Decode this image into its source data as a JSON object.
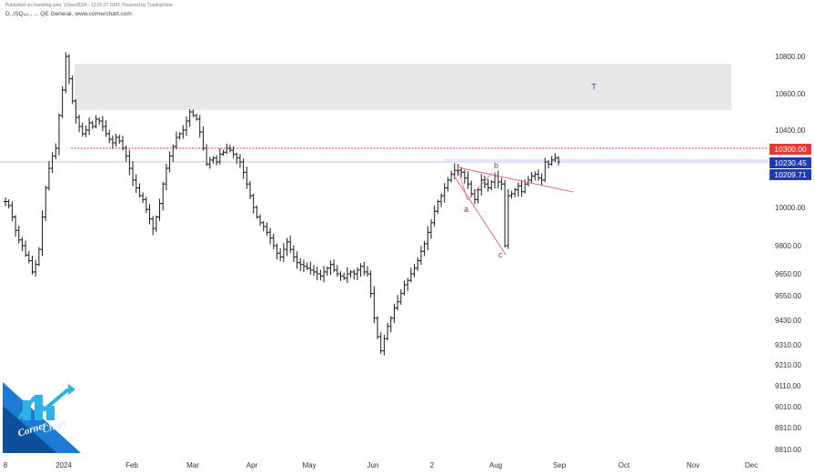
{
  "header": {
    "published": "Published on Investing.com, 1/Sep/2024 - 12:01:27 GMT, Powered by TradingView.",
    "subtitle_instrument": "D.,ISQت., ...",
    "subtitle_index": "QE General,",
    "subtitle_site": "www.cornerchart.com"
  },
  "logo": {
    "text": "Corner Chart"
  },
  "colors": {
    "candle": "#1a1a1a",
    "resistance_line": "#e23b3b",
    "support_line": "#3a3ad6",
    "zone_fill": "#e8e8e8",
    "triangle_line": "#e36b80",
    "annotation": "#8e2aa8",
    "label_red": "#e53935",
    "label_blue": "#1e3bb5"
  },
  "chart_data": {
    "type": "ohlc",
    "x_axis_labels": [
      "8",
      "2024",
      "Feb",
      "Mar",
      "Apr",
      "May",
      "Jun",
      "2",
      "Aug",
      "Sep",
      "Oct",
      "Nov",
      "Dec"
    ],
    "y_axis_labels": [
      "10800.00",
      "10600.00",
      "10400.00",
      "10000.00",
      "9800.00",
      "9650.00",
      "9550.00",
      "9430.00",
      "9310.00",
      "9210.00",
      "9110.00",
      "9010.00",
      "8910.00",
      "8810.00"
    ],
    "price_labels": [
      {
        "text": "10300.00",
        "color": "red"
      },
      {
        "text": "10230.45",
        "color": "blue"
      },
      {
        "text": "10209.71",
        "color": "blue"
      }
    ],
    "horizontal_lines": [
      {
        "value": 10300,
        "style": "dotted",
        "color": "red"
      },
      {
        "value": 10230,
        "style": "solid",
        "color": "blue"
      }
    ],
    "target_zone": {
      "from": 10510,
      "to": 10760,
      "label": "T"
    },
    "annotations": [
      "a",
      "b",
      "c"
    ],
    "closes": [
      10030,
      10010,
      9950,
      9880,
      9830,
      9800,
      9750,
      9720,
      9660,
      9700,
      9780,
      9950,
      10100,
      10200,
      10260,
      10300,
      10480,
      10620,
      10800,
      10680,
      10560,
      10470,
      10420,
      10380,
      10400,
      10440,
      10420,
      10460,
      10450,
      10420,
      10380,
      10350,
      10330,
      10360,
      10340,
      10300,
      10260,
      10200,
      10140,
      10100,
      10060,
      10040,
      9990,
      9940,
      9890,
      9950,
      10020,
      10120,
      10200,
      10260,
      10310,
      10360,
      10380,
      10400,
      10450,
      10500,
      10480,
      10460,
      10390,
      10300,
      10220,
      10240,
      10250,
      10230,
      10270,
      10280,
      10300,
      10290,
      10270,
      10250,
      10230,
      10180,
      10120,
      10060,
      10000,
      9950,
      9920,
      9900,
      9870,
      9840,
      9800,
      9760,
      9740,
      9780,
      9820,
      9780,
      9740,
      9710,
      9700,
      9690,
      9680,
      9670,
      9660,
      9650,
      9640,
      9660,
      9680,
      9700,
      9670,
      9650,
      9640,
      9630,
      9650,
      9660,
      9650,
      9670,
      9690,
      9660,
      9650,
      9560,
      9440,
      9350,
      9280,
      9340,
      9400,
      9440,
      9490,
      9520,
      9560,
      9600,
      9620,
      9650,
      9680,
      9720,
      9770,
      9810,
      9870,
      9920,
      9980,
      10030,
      10060,
      10100,
      10140,
      10170,
      10190,
      10190,
      10180,
      10150,
      10120,
      10070,
      10040,
      10090,
      10140,
      10120,
      10100,
      10130,
      10160,
      10130,
      10120,
      9800,
      10060,
      10070,
      10090,
      10110,
      10080,
      10120,
      10140,
      10160,
      10170,
      10150,
      10140,
      10230,
      10220,
      10240,
      10250,
      10230
    ]
  }
}
